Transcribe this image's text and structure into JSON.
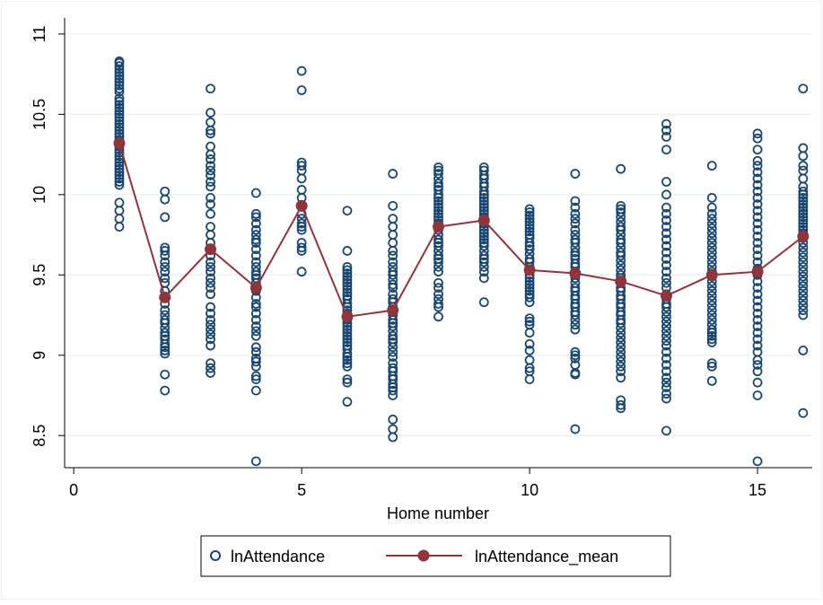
{
  "chart_data": {
    "type": "scatter",
    "xlabel": "Home number",
    "ylabel": "",
    "xlim": [
      -0.2,
      16.2
    ],
    "ylim": [
      8.3,
      11.1
    ],
    "x_ticks": [
      0,
      5,
      10,
      15
    ],
    "y_ticks": [
      8.5,
      9,
      9.5,
      10,
      10.5,
      11
    ],
    "x_tick_labels": [
      "0",
      "5",
      "10",
      "15"
    ],
    "y_tick_labels": [
      "8.5",
      "9",
      "9.5",
      "10",
      "10.5",
      "11"
    ],
    "grid": "horizontal",
    "legend_position": "bottom",
    "colors": {
      "scatter": "#1a476f",
      "mean": "#90353b",
      "grid": "#eaf2f3",
      "legend_border": "#000000"
    },
    "series": [
      {
        "name": "lnAttendance",
        "kind": "scatter",
        "groups": [
          {
            "x": 1,
            "y": [
              10.83,
              10.82,
              10.8,
              10.78,
              10.76,
              10.74,
              10.72,
              10.7,
              10.68,
              10.66,
              10.64,
              10.6,
              10.58,
              10.56,
              10.54,
              10.52,
              10.5,
              10.48,
              10.46,
              10.44,
              10.42,
              10.4,
              10.38,
              10.36,
              10.34,
              10.32,
              10.3,
              10.28,
              10.26,
              10.24,
              10.22,
              10.2,
              10.18,
              10.16,
              10.14,
              10.12,
              10.1,
              10.08,
              10.06,
              9.95,
              9.9,
              9.85,
              9.8
            ]
          },
          {
            "x": 2,
            "y": [
              10.02,
              9.97,
              9.86,
              9.67,
              9.65,
              9.62,
              9.58,
              9.55,
              9.52,
              9.48,
              9.45,
              9.4,
              9.36,
              9.32,
              9.28,
              9.25,
              9.22,
              9.2,
              9.17,
              9.14,
              9.12,
              9.1,
              9.07,
              9.05,
              9.03,
              9.01,
              8.88,
              8.78
            ]
          },
          {
            "x": 3,
            "y": [
              10.66,
              10.51,
              10.45,
              10.4,
              10.38,
              10.3,
              10.25,
              10.22,
              10.18,
              10.15,
              10.12,
              10.08,
              10.05,
              9.98,
              9.94,
              9.88,
              9.8,
              9.75,
              9.7,
              9.66,
              9.62,
              9.58,
              9.55,
              9.52,
              9.48,
              9.45,
              9.42,
              9.38,
              9.3,
              9.26,
              9.22,
              9.19,
              9.16,
              9.13,
              9.1,
              9.06,
              8.95,
              8.92,
              8.89
            ]
          },
          {
            "x": 4,
            "y": [
              10.01,
              9.88,
              9.86,
              9.82,
              9.78,
              9.75,
              9.72,
              9.7,
              9.66,
              9.62,
              9.58,
              9.55,
              9.52,
              9.5,
              9.48,
              9.45,
              9.42,
              9.4,
              9.36,
              9.32,
              9.3,
              9.26,
              9.22,
              9.18,
              9.15,
              9.12,
              9.05,
              9.02,
              8.98,
              8.96,
              8.93,
              8.87,
              8.85,
              8.78,
              8.34
            ]
          },
          {
            "x": 5,
            "y": [
              10.77,
              10.65,
              10.2,
              10.18,
              10.15,
              10.1,
              10.03,
              9.98,
              9.93,
              9.88,
              9.85,
              9.82,
              9.8,
              9.78,
              9.7,
              9.67,
              9.65,
              9.52
            ]
          },
          {
            "x": 6,
            "y": [
              9.9,
              9.65,
              9.55,
              9.53,
              9.51,
              9.49,
              9.47,
              9.45,
              9.43,
              9.41,
              9.39,
              9.37,
              9.35,
              9.32,
              9.3,
              9.28,
              9.26,
              9.24,
              9.22,
              9.2,
              9.18,
              9.16,
              9.14,
              9.12,
              9.1,
              9.08,
              9.06,
              9.04,
              9.01,
              8.99,
              8.97,
              8.95,
              8.93,
              8.85,
              8.83,
              8.71
            ]
          },
          {
            "x": 7,
            "y": [
              10.13,
              9.93,
              9.85,
              9.8,
              9.75,
              9.7,
              9.65,
              9.62,
              9.58,
              9.55,
              9.52,
              9.5,
              9.47,
              9.44,
              9.42,
              9.38,
              9.35,
              9.33,
              9.3,
              9.27,
              9.25,
              9.22,
              9.2,
              9.18,
              9.15,
              9.12,
              9.1,
              9.08,
              9.05,
              9.02,
              8.99,
              8.95,
              8.92,
              8.9,
              8.87,
              8.85,
              8.82,
              8.8,
              8.78,
              8.75,
              8.6,
              8.54,
              8.49
            ]
          },
          {
            "x": 8,
            "y": [
              10.17,
              10.15,
              10.13,
              10.1,
              10.07,
              10.05,
              10.03,
              10.0,
              9.98,
              9.96,
              9.94,
              9.92,
              9.9,
              9.88,
              9.86,
              9.84,
              9.82,
              9.8,
              9.78,
              9.75,
              9.72,
              9.7,
              9.68,
              9.65,
              9.62,
              9.6,
              9.58,
              9.55,
              9.52,
              9.45,
              9.42,
              9.38,
              9.35,
              9.32,
              9.3,
              9.24
            ]
          },
          {
            "x": 9,
            "y": [
              10.17,
              10.15,
              10.12,
              10.1,
              10.07,
              10.05,
              10.02,
              10.0,
              9.98,
              9.96,
              9.94,
              9.92,
              9.9,
              9.88,
              9.86,
              9.84,
              9.82,
              9.8,
              9.78,
              9.76,
              9.74,
              9.72,
              9.7,
              9.68,
              9.65,
              9.62,
              9.6,
              9.58,
              9.55,
              9.52,
              9.48,
              9.33
            ]
          },
          {
            "x": 10,
            "y": [
              9.91,
              9.89,
              9.87,
              9.85,
              9.83,
              9.81,
              9.79,
              9.77,
              9.75,
              9.73,
              9.7,
              9.68,
              9.66,
              9.63,
              9.6,
              9.58,
              9.55,
              9.53,
              9.5,
              9.48,
              9.46,
              9.44,
              9.42,
              9.4,
              9.38,
              9.36,
              9.33,
              9.23,
              9.21,
              9.19,
              9.14,
              9.07,
              9.03,
              8.97,
              8.92,
              8.9,
              8.85
            ]
          },
          {
            "x": 11,
            "y": [
              10.13,
              9.96,
              9.92,
              9.88,
              9.85,
              9.82,
              9.78,
              9.75,
              9.72,
              9.7,
              9.67,
              9.64,
              9.62,
              9.6,
              9.57,
              9.55,
              9.52,
              9.5,
              9.48,
              9.45,
              9.42,
              9.4,
              9.37,
              9.35,
              9.32,
              9.3,
              9.27,
              9.25,
              9.22,
              9.19,
              9.16,
              9.02,
              9.0,
              8.98,
              8.94,
              8.89,
              8.88,
              8.54
            ]
          },
          {
            "x": 12,
            "y": [
              10.16,
              9.93,
              9.91,
              9.89,
              9.86,
              9.83,
              9.8,
              9.78,
              9.75,
              9.72,
              9.7,
              9.67,
              9.64,
              9.62,
              9.59,
              9.56,
              9.53,
              9.5,
              9.48,
              9.45,
              9.42,
              9.4,
              9.37,
              9.35,
              9.32,
              9.3,
              9.27,
              9.25,
              9.22,
              9.2,
              9.17,
              9.14,
              9.11,
              9.08,
              9.05,
              9.02,
              8.99,
              8.96,
              8.93,
              8.9,
              8.86,
              8.72,
              8.69,
              8.67
            ]
          },
          {
            "x": 13,
            "y": [
              10.44,
              10.4,
              10.36,
              10.28,
              10.08,
              10.0,
              9.92,
              9.88,
              9.84,
              9.8,
              9.76,
              9.72,
              9.68,
              9.64,
              9.6,
              9.56,
              9.52,
              9.48,
              9.45,
              9.42,
              9.38,
              9.35,
              9.32,
              9.3,
              9.27,
              9.24,
              9.21,
              9.18,
              9.15,
              9.12,
              9.09,
              9.06,
              9.02,
              8.98,
              8.94,
              8.9,
              8.86,
              8.83,
              8.8,
              8.76,
              8.73,
              8.53
            ]
          },
          {
            "x": 14,
            "y": [
              10.18,
              9.98,
              9.92,
              9.88,
              9.85,
              9.82,
              9.79,
              9.76,
              9.73,
              9.7,
              9.67,
              9.64,
              9.61,
              9.58,
              9.55,
              9.52,
              9.49,
              9.46,
              9.43,
              9.4,
              9.37,
              9.34,
              9.31,
              9.28,
              9.25,
              9.22,
              9.19,
              9.16,
              9.14,
              9.12,
              9.1,
              9.08,
              8.95,
              8.93,
              8.84
            ]
          },
          {
            "x": 15,
            "y": [
              10.38,
              10.35,
              10.28,
              10.21,
              10.18,
              10.14,
              10.1,
              10.06,
              10.02,
              9.98,
              9.94,
              9.9,
              9.86,
              9.82,
              9.78,
              9.74,
              9.7,
              9.66,
              9.62,
              9.58,
              9.54,
              9.5,
              9.46,
              9.42,
              9.38,
              9.34,
              9.3,
              9.26,
              9.22,
              9.18,
              9.14,
              9.1,
              9.06,
              9.02,
              8.97,
              8.94,
              8.9,
              8.83,
              8.75,
              8.34
            ]
          },
          {
            "x": 16,
            "y": [
              10.66,
              10.29,
              10.24,
              10.18,
              10.15,
              10.1,
              10.05,
              10.02,
              10.0,
              9.98,
              9.96,
              9.94,
              9.92,
              9.9,
              9.88,
              9.86,
              9.84,
              9.82,
              9.8,
              9.78,
              9.76,
              9.73,
              9.7,
              9.67,
              9.64,
              9.61,
              9.58,
              9.55,
              9.52,
              9.49,
              9.46,
              9.43,
              9.4,
              9.37,
              9.34,
              9.31,
              9.28,
              9.25,
              9.03,
              8.64
            ]
          }
        ]
      },
      {
        "name": "lnAttendance_mean",
        "kind": "line",
        "x": [
          1,
          2,
          3,
          4,
          5,
          6,
          7,
          8,
          9,
          10,
          11,
          12,
          13,
          14,
          15,
          16
        ],
        "y": [
          10.32,
          9.36,
          9.66,
          9.42,
          9.93,
          9.24,
          9.28,
          9.8,
          9.84,
          9.53,
          9.51,
          9.46,
          9.37,
          9.5,
          9.52,
          9.74
        ]
      }
    ]
  }
}
